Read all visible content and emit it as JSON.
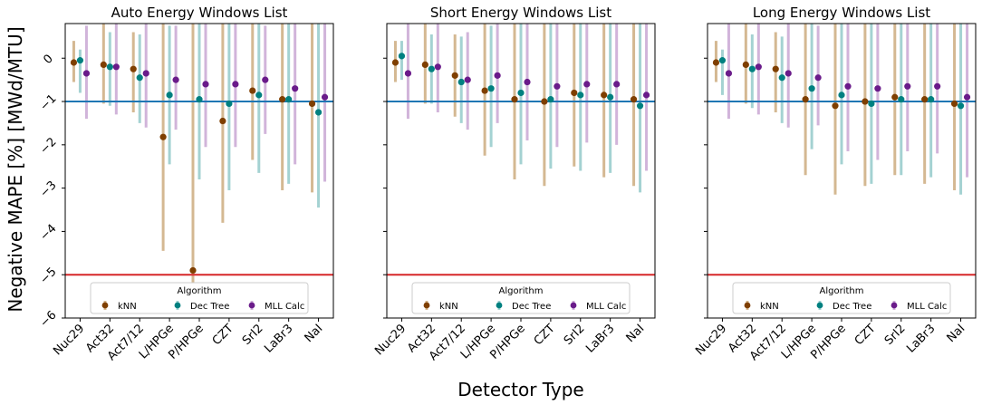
{
  "figure": {
    "ylabel": "Negative MAPE [%] [MWd/MTU]",
    "xlabel": "Detector Type"
  },
  "chart_data": [
    {
      "type": "scatter",
      "title": "Auto Energy Windows List",
      "categories": [
        "Nuc29",
        "Act32",
        "Act7/12",
        "L/HPGe",
        "P/HPGe",
        "CZT",
        "SrI2",
        "LaBr3",
        "NaI"
      ],
      "ylim": [
        -6,
        0.8
      ],
      "yticks": [
        0,
        -1,
        -2,
        -3,
        -4,
        -5,
        -6
      ],
      "grid": false,
      "hlines": [
        {
          "y": -1,
          "color": "#1f77b4"
        },
        {
          "y": -5,
          "color": "#d62728"
        }
      ],
      "series": [
        {
          "name": "kNN",
          "color": "#7f3f00",
          "bar_color": "#d2b48c",
          "values": [
            -0.1,
            -0.15,
            -0.25,
            -1.82,
            -4.9,
            -1.45,
            -0.75,
            -0.95,
            -1.05
          ],
          "err_low": [
            -0.55,
            -1.05,
            -1.25,
            -4.45,
            -5.2,
            -3.8,
            -2.35,
            -3.05,
            -3.1
          ],
          "err_high": [
            0.4,
            0.8,
            0.6,
            0.8,
            0.8,
            0.8,
            0.8,
            0.8,
            0.8
          ]
        },
        {
          "name": "Dec Tree",
          "color": "#008080",
          "bar_color": "#9fd0d0",
          "values": [
            -0.05,
            -0.2,
            -0.45,
            -0.85,
            -0.95,
            -1.05,
            -0.85,
            -0.95,
            -1.25
          ],
          "err_low": [
            -0.8,
            -1.1,
            -1.5,
            -2.45,
            -2.8,
            -3.05,
            -2.65,
            -2.9,
            -3.45
          ],
          "err_high": [
            0.2,
            0.6,
            0.55,
            0.75,
            0.8,
            0.8,
            0.8,
            0.8,
            0.8
          ]
        },
        {
          "name": "MLL Calc",
          "color": "#6a1b8a",
          "bar_color": "#cfb0d8",
          "values": [
            -0.35,
            -0.2,
            -0.35,
            -0.5,
            -0.6,
            -0.6,
            -0.5,
            -0.7,
            -0.9
          ],
          "err_low": [
            -1.4,
            -1.3,
            -1.6,
            -1.65,
            -2.05,
            -2.05,
            -1.75,
            -2.45,
            -2.85
          ],
          "err_high": [
            0.75,
            0.8,
            0.8,
            0.75,
            0.8,
            0.8,
            0.75,
            0.8,
            0.8
          ]
        }
      ]
    },
    {
      "type": "scatter",
      "title": "Short Energy Windows List",
      "categories": [
        "Nuc29",
        "Act32",
        "Act7/12",
        "L/HPGe",
        "P/HPGe",
        "CZT",
        "SrI2",
        "LaBr3",
        "NaI"
      ],
      "ylim": [
        -6,
        0.8
      ],
      "grid": false,
      "hlines": [
        {
          "y": -1,
          "color": "#1f77b4"
        },
        {
          "y": -5,
          "color": "#d62728"
        }
      ],
      "series": [
        {
          "name": "kNN",
          "color": "#7f3f00",
          "bar_color": "#d2b48c",
          "values": [
            -0.1,
            -0.15,
            -0.4,
            -0.75,
            -0.95,
            -1.0,
            -0.8,
            -0.85,
            -0.95
          ],
          "err_low": [
            -0.55,
            -1.05,
            -1.35,
            -2.25,
            -2.8,
            -2.95,
            -2.5,
            -2.75,
            -2.95
          ],
          "err_high": [
            0.4,
            0.8,
            0.55,
            0.8,
            0.8,
            0.8,
            0.8,
            0.8,
            0.8
          ]
        },
        {
          "name": "Dec Tree",
          "color": "#008080",
          "bar_color": "#9fd0d0",
          "values": [
            0.05,
            -0.25,
            -0.55,
            -0.7,
            -0.8,
            -0.95,
            -0.85,
            -0.9,
            -1.1
          ],
          "err_low": [
            -0.5,
            -1.05,
            -1.5,
            -2.05,
            -2.45,
            -2.55,
            -2.6,
            -2.65,
            -3.1
          ],
          "err_high": [
            0.4,
            0.55,
            0.5,
            0.75,
            0.8,
            0.8,
            0.8,
            0.8,
            0.8
          ]
        },
        {
          "name": "MLL Calc",
          "color": "#6a1b8a",
          "bar_color": "#cfb0d8",
          "values": [
            -0.35,
            -0.2,
            -0.5,
            -0.4,
            -0.55,
            -0.65,
            -0.6,
            -0.6,
            -0.85
          ],
          "err_low": [
            -1.4,
            -1.25,
            -1.65,
            -1.5,
            -1.9,
            -2.05,
            -1.95,
            -2.0,
            -2.6
          ],
          "err_high": [
            0.8,
            0.8,
            0.6,
            0.8,
            0.8,
            0.8,
            0.8,
            0.8,
            0.8
          ]
        }
      ]
    },
    {
      "type": "scatter",
      "title": "Long Energy Windows List",
      "categories": [
        "Nuc29",
        "Act32",
        "Act7/12",
        "L/HPGe",
        "P/HPGe",
        "CZT",
        "SrI2",
        "LaBr3",
        "NaI"
      ],
      "ylim": [
        -6,
        0.8
      ],
      "grid": false,
      "hlines": [
        {
          "y": -1,
          "color": "#1f77b4"
        },
        {
          "y": -5,
          "color": "#d62728"
        }
      ],
      "series": [
        {
          "name": "kNN",
          "color": "#7f3f00",
          "bar_color": "#d2b48c",
          "values": [
            -0.1,
            -0.15,
            -0.25,
            -0.95,
            -1.1,
            -1.0,
            -0.9,
            -0.95,
            -1.05
          ],
          "err_low": [
            -0.55,
            -1.05,
            -1.25,
            -2.7,
            -3.15,
            -2.95,
            -2.7,
            -2.9,
            -3.05
          ],
          "err_high": [
            0.4,
            0.8,
            0.6,
            0.8,
            0.8,
            0.8,
            0.8,
            0.8,
            0.8
          ]
        },
        {
          "name": "Dec Tree",
          "color": "#008080",
          "bar_color": "#9fd0d0",
          "values": [
            -0.05,
            -0.25,
            -0.45,
            -0.7,
            -0.85,
            -1.05,
            -0.95,
            -0.95,
            -1.1
          ],
          "err_low": [
            -0.85,
            -1.15,
            -1.5,
            -2.1,
            -2.45,
            -2.9,
            -2.7,
            -2.75,
            -3.15
          ],
          "err_high": [
            0.2,
            0.55,
            0.5,
            0.8,
            0.8,
            0.8,
            0.8,
            0.8,
            0.8
          ]
        },
        {
          "name": "MLL Calc",
          "color": "#6a1b8a",
          "bar_color": "#cfb0d8",
          "values": [
            -0.35,
            -0.2,
            -0.35,
            -0.45,
            -0.65,
            -0.7,
            -0.65,
            -0.65,
            -0.9
          ],
          "err_low": [
            -1.4,
            -1.3,
            -1.6,
            -1.55,
            -2.15,
            -2.35,
            -2.15,
            -2.2,
            -2.75
          ],
          "err_high": [
            0.8,
            0.8,
            0.8,
            0.75,
            0.8,
            0.8,
            0.8,
            0.8,
            0.8
          ]
        }
      ]
    }
  ],
  "legend": {
    "title": "Algorithm",
    "placement": "bottom-center",
    "entries": [
      "kNN",
      "Dec Tree",
      "MLL Calc"
    ]
  }
}
